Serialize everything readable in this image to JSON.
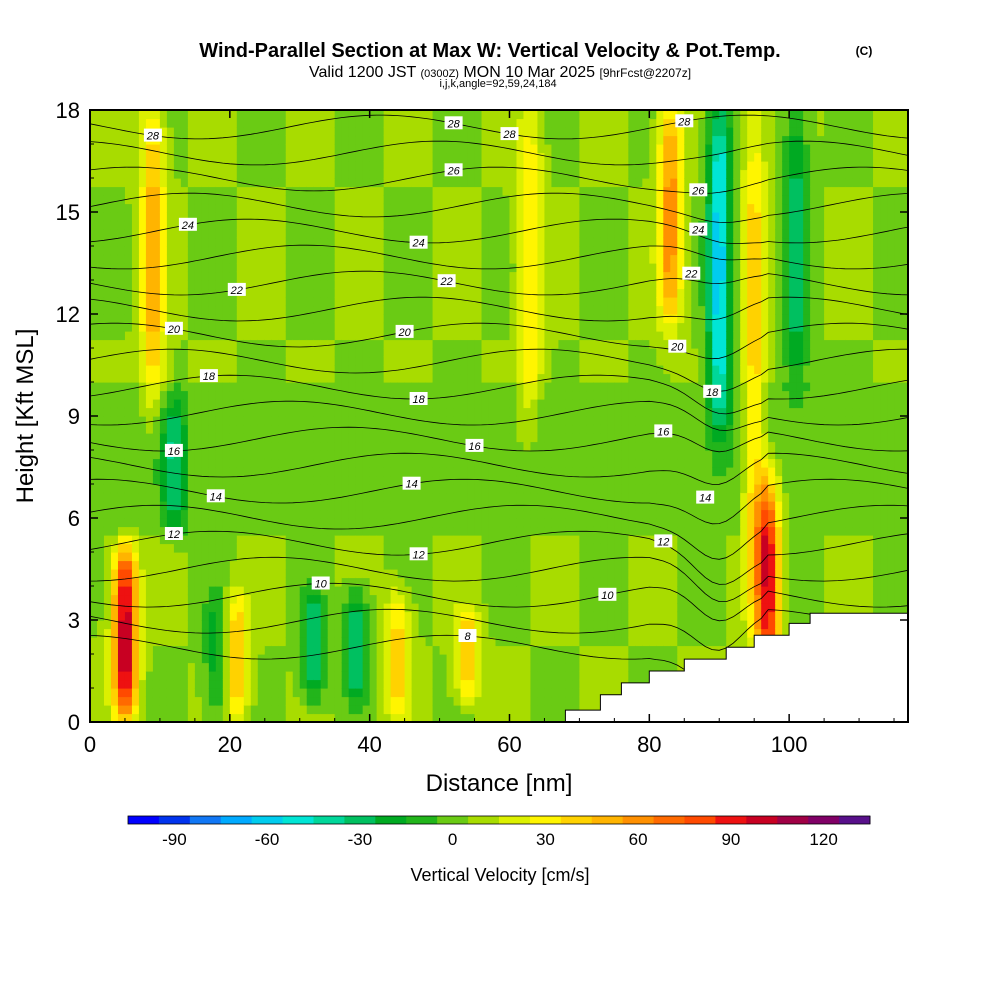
{
  "title": {
    "main": "Wind-Parallel Section at Max W: Vertical Velocity & Pot.Temp.",
    "copyright": "(C)",
    "valid_prefix": "Valid 1200 JST",
    "valid_utc": "(0300Z)",
    "valid_date": "MON 10 Mar 2025",
    "forecast": "[9hrFcst@2207z]",
    "indices": "i,j,k,angle=92,59,24,184"
  },
  "chart_data": {
    "type": "heatmap",
    "title": "Wind-Parallel Section at Max W: Vertical Velocity & Pot.Temp.",
    "xlabel": "Distance [nm]",
    "ylabel": "Height [Kft MSL]",
    "xlim": [
      0,
      117
    ],
    "ylim": [
      0,
      18
    ],
    "x_ticks": [
      "0",
      "20",
      "40",
      "60",
      "80",
      "100"
    ],
    "y_ticks": [
      "0",
      "3",
      "6",
      "9",
      "12",
      "15",
      "18"
    ],
    "colorbar": {
      "label": "Vertical Velocity [cm/s]",
      "ticks": [
        "-90",
        "-60",
        "-30",
        "0",
        "30",
        "60",
        "90",
        "120"
      ],
      "min": -105,
      "max": 135,
      "step": 10,
      "colors": [
        "#0000ff",
        "#0033ee",
        "#1177f5",
        "#00aaff",
        "#00ccee",
        "#00e5d5",
        "#00d79a",
        "#00c060",
        "#00aa22",
        "#22b51b",
        "#6acb14",
        "#a8dc00",
        "#dcf000",
        "#fff500",
        "#ffd200",
        "#ffb400",
        "#ff9000",
        "#ff6a00",
        "#ff4a00",
        "#ee1111",
        "#c80022",
        "#a00045",
        "#800066",
        "#58108a"
      ]
    },
    "vertical_velocity_features_cm_s": [
      {
        "x": 5,
        "y_range": [
          0.5,
          4.8
        ],
        "peak": 100
      },
      {
        "x": 9,
        "y_range": [
          9.5,
          18
        ],
        "peak": 45
      },
      {
        "x": 12,
        "y_range": [
          6,
          9
        ],
        "peak": -35
      },
      {
        "x": 18,
        "y_range": [
          0.5,
          3.5
        ],
        "peak": -25
      },
      {
        "x": 21,
        "y_range": [
          0.5,
          3.5
        ],
        "peak": 40
      },
      {
        "x": 32,
        "y_range": [
          1,
          3.5
        ],
        "peak": -40
      },
      {
        "x": 38,
        "y_range": [
          1,
          3.5
        ],
        "peak": -40
      },
      {
        "x": 44,
        "y_range": [
          0.5,
          3.5
        ],
        "peak": 35
      },
      {
        "x": 54,
        "y_range": [
          1,
          3
        ],
        "peak": 40
      },
      {
        "x": 63,
        "y_range": [
          9,
          18
        ],
        "peak": 30
      },
      {
        "x": 83,
        "y_range": [
          12,
          18
        ],
        "peak": 55
      },
      {
        "x": 90,
        "y_range": [
          9,
          18
        ],
        "peak": -65
      },
      {
        "x": 95,
        "y_range": [
          3,
          18
        ],
        "peak": 35
      },
      {
        "x": 97,
        "y_range": [
          1.5,
          6.8
        ],
        "peak": 85
      },
      {
        "x": 101,
        "y_range": [
          10,
          18
        ],
        "peak": -35
      }
    ],
    "potential_temperature_contour_labels": [
      "28",
      "28",
      "28",
      "28",
      "26",
      "26",
      "24",
      "24",
      "24",
      "22",
      "22",
      "22",
      "20",
      "20",
      "20",
      "18",
      "18",
      "18",
      "16",
      "16",
      "16",
      "14",
      "14",
      "14",
      "12",
      "12",
      "12",
      "10",
      "10",
      "8"
    ],
    "terrain_profile": [
      [
        68,
        0
      ],
      [
        68,
        0.35
      ],
      [
        73,
        0.35
      ],
      [
        73,
        0.8
      ],
      [
        76,
        0.8
      ],
      [
        76,
        1.15
      ],
      [
        80,
        1.15
      ],
      [
        80,
        1.5
      ],
      [
        85,
        1.5
      ],
      [
        85,
        1.85
      ],
      [
        91,
        1.85
      ],
      [
        91,
        2.2
      ],
      [
        95,
        2.2
      ],
      [
        95,
        2.55
      ],
      [
        100,
        2.55
      ],
      [
        100,
        2.9
      ],
      [
        103,
        2.9
      ],
      [
        103,
        3.2
      ],
      [
        117,
        3.2
      ]
    ]
  }
}
